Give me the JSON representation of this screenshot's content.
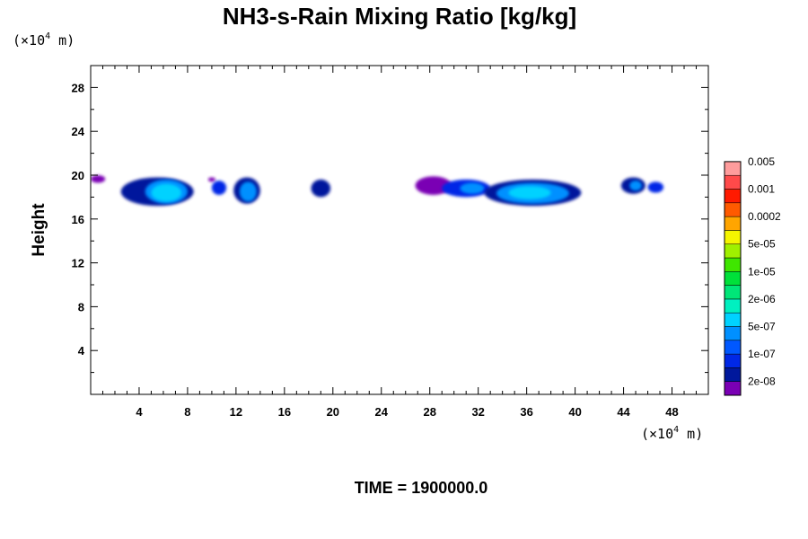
{
  "chart_data": {
    "type": "heatmap",
    "title": "NH3-s-Rain Mixing Ratio [kg/kg]",
    "ylabel": "Height",
    "xlabel": "",
    "x_unit": {
      "prefix": "(×10",
      "exp": "4",
      "suffix": " m)"
    },
    "y_unit": {
      "prefix": "(×10",
      "exp": "4",
      "suffix": " m)"
    },
    "xlim": [
      0,
      51
    ],
    "ylim": [
      0,
      30
    ],
    "x_ticks": [
      4,
      8,
      12,
      16,
      20,
      24,
      28,
      32,
      36,
      40,
      44,
      48
    ],
    "y_ticks": [
      4,
      8,
      12,
      16,
      20,
      24,
      28
    ],
    "grid": false,
    "colorbar": {
      "placement": "right",
      "colors": [
        "#7a00b4",
        "#00189c",
        "#0028e6",
        "#0058ff",
        "#0090ff",
        "#00d2ff",
        "#00f0c0",
        "#00e678",
        "#00e13a",
        "#3fe600",
        "#a0f000",
        "#f5f500",
        "#ffa500",
        "#ff5a00",
        "#ff1a00",
        "#ff4a4a",
        "#ff9c9c"
      ],
      "labels": [
        "2e-08",
        "1e-07",
        "5e-07",
        "2e-06",
        "1e-05",
        "5e-05",
        "0.0002",
        "0.001",
        "0.005"
      ]
    },
    "regions": [
      {
        "x_range": [
          0.0,
          1.2
        ],
        "y_range": [
          19.3,
          20.0
        ],
        "level": 0
      },
      {
        "x_range": [
          2.5,
          8.5
        ],
        "y_range": [
          17.2,
          19.8
        ],
        "level": 1
      },
      {
        "x_range": [
          4.5,
          8.0
        ],
        "y_range": [
          17.4,
          19.6
        ],
        "level": 4
      },
      {
        "x_range": [
          5.0,
          7.5
        ],
        "y_range": [
          17.6,
          19.2
        ],
        "level": 5
      },
      {
        "x_range": [
          9.7,
          10.3
        ],
        "y_range": [
          19.4,
          19.8
        ],
        "level": 0
      },
      {
        "x_range": [
          10.0,
          11.2
        ],
        "y_range": [
          18.2,
          19.5
        ],
        "level": 2
      },
      {
        "x_range": [
          11.8,
          14.0
        ],
        "y_range": [
          17.4,
          19.8
        ],
        "level": 1
      },
      {
        "x_range": [
          12.3,
          13.7
        ],
        "y_range": [
          17.6,
          19.4
        ],
        "level": 4
      },
      {
        "x_range": [
          18.2,
          19.8
        ],
        "y_range": [
          18.0,
          19.6
        ],
        "level": 1
      },
      {
        "x_range": [
          26.8,
          29.8
        ],
        "y_range": [
          18.2,
          19.9
        ],
        "level": 0
      },
      {
        "x_range": [
          29.0,
          33.0
        ],
        "y_range": [
          18.0,
          19.6
        ],
        "level": 2
      },
      {
        "x_range": [
          30.5,
          32.5
        ],
        "y_range": [
          18.3,
          19.3
        ],
        "level": 4
      },
      {
        "x_range": [
          32.5,
          40.5
        ],
        "y_range": [
          17.2,
          19.6
        ],
        "level": 1
      },
      {
        "x_range": [
          33.5,
          39.5
        ],
        "y_range": [
          17.4,
          19.3
        ],
        "level": 4
      },
      {
        "x_range": [
          34.5,
          38.0
        ],
        "y_range": [
          17.8,
          19.0
        ],
        "level": 5
      },
      {
        "x_range": [
          43.8,
          45.8
        ],
        "y_range": [
          18.3,
          19.8
        ],
        "level": 1
      },
      {
        "x_range": [
          44.5,
          45.5
        ],
        "y_range": [
          18.6,
          19.5
        ],
        "level": 4
      },
      {
        "x_range": [
          46.0,
          47.3
        ],
        "y_range": [
          18.4,
          19.4
        ],
        "level": 2
      }
    ]
  },
  "footer": {
    "time_label": "TIME = 1900000.0"
  }
}
